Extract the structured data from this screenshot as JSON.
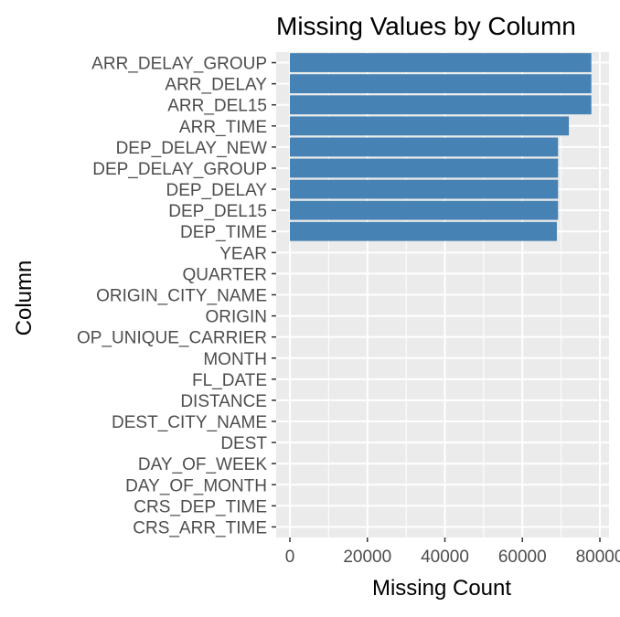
{
  "chart_data": {
    "type": "bar",
    "orientation": "horizontal",
    "title": "Missing Values by Column",
    "xlabel": "Missing Count",
    "ylabel": "Column",
    "categories": [
      "ARR_DELAY_GROUP",
      "ARR_DELAY",
      "ARR_DEL15",
      "ARR_TIME",
      "DEP_DELAY_NEW",
      "DEP_DELAY_GROUP",
      "DEP_DELAY",
      "DEP_DEL15",
      "DEP_TIME",
      "YEAR",
      "QUARTER",
      "ORIGIN_CITY_NAME",
      "ORIGIN",
      "OP_UNIQUE_CARRIER",
      "MONTH",
      "FL_DATE",
      "DISTANCE",
      "DEST_CITY_NAME",
      "DEST",
      "DAY_OF_WEEK",
      "DAY_OF_MONTH",
      "CRS_DEP_TIME",
      "CRS_ARR_TIME"
    ],
    "values": [
      77800,
      77800,
      77800,
      72000,
      69200,
      69200,
      69200,
      69200,
      68900,
      0,
      0,
      0,
      0,
      0,
      0,
      0,
      0,
      0,
      0,
      0,
      0,
      0,
      0
    ],
    "xlim": [
      0,
      80000
    ],
    "xticks": [
      0,
      20000,
      40000,
      60000,
      80000
    ],
    "xtick_labels": [
      "0",
      "20000",
      "40000",
      "60000",
      "80000"
    ],
    "bar_color": "#4682B4",
    "panel_color": "#EBEBEB",
    "grid_color": "#FFFFFF",
    "grid": true,
    "legend": "none"
  }
}
